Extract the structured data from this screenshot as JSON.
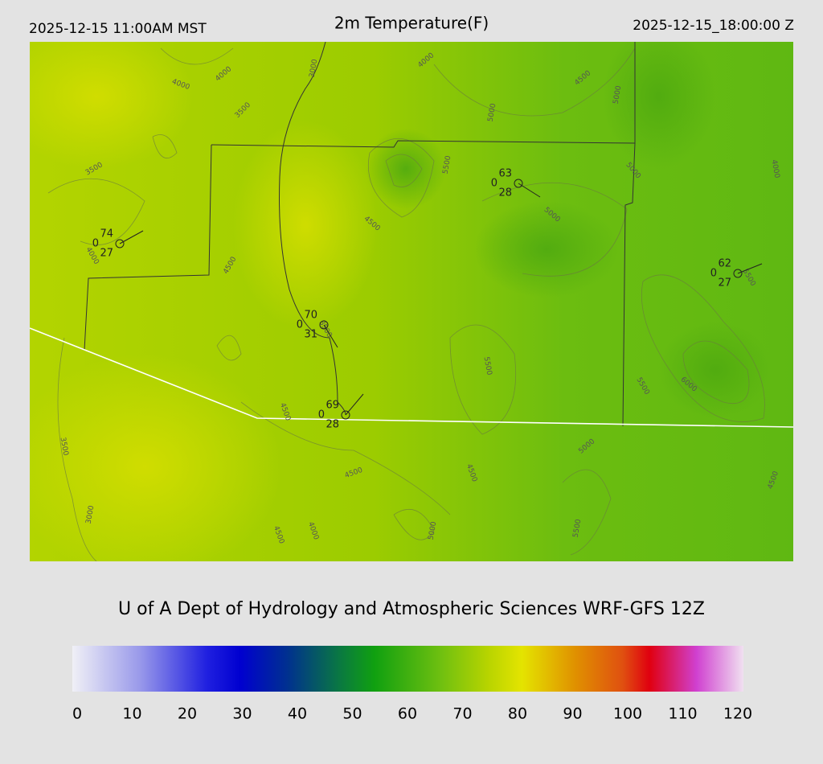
{
  "header": {
    "left": "2025-12-15 11:00AM MST",
    "title": "2m Temperature(F)",
    "right": "2025-12-15_18:00:00 Z"
  },
  "stations": [
    {
      "temp": 74,
      "precip": 0,
      "dew": 27
    },
    {
      "temp": 63,
      "precip": 0,
      "dew": 28
    },
    {
      "temp": 62,
      "precip": 0,
      "dew": 27
    },
    {
      "temp": 70,
      "precip": 0,
      "dew": 31
    },
    {
      "temp": 69,
      "precip": 0,
      "dew": 28
    }
  ],
  "contour_labels": [
    "4000",
    "4000",
    "3500",
    "3000",
    "3500",
    "4000",
    "4000",
    "4500",
    "5000",
    "5000",
    "5500",
    "5000",
    "4000",
    "4500",
    "5000",
    "4500",
    "5500",
    "3500",
    "5500",
    "5500",
    "6000",
    "4500",
    "3500",
    "5000",
    "4500",
    "4500",
    "4500",
    "3000",
    "4000",
    "4500",
    "5000",
    "5500"
  ],
  "credit": "U of A Dept of Hydrology and Atmospheric Sciences WRF-GFS 12Z",
  "colorbar": {
    "ticks": [
      0,
      10,
      20,
      30,
      40,
      50,
      60,
      70,
      80,
      90,
      100,
      110,
      120
    ]
  }
}
